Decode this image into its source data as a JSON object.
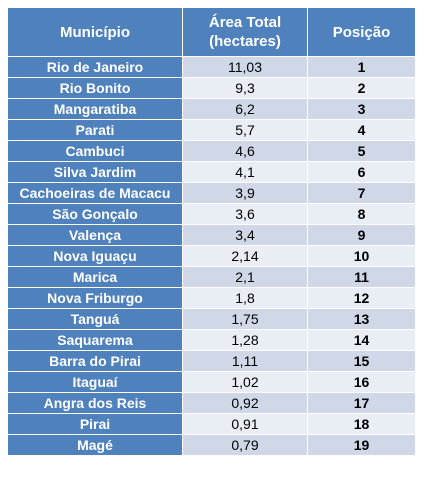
{
  "table": {
    "headers": [
      "Município",
      "Área Total\n(hectares)",
      "Posição"
    ],
    "rows": [
      {
        "municipio": "Rio de Janeiro",
        "area": "11,03",
        "posicao": "1"
      },
      {
        "municipio": "Rio Bonito",
        "area": "9,3",
        "posicao": "2"
      },
      {
        "municipio": "Mangaratiba",
        "area": "6,2",
        "posicao": "3"
      },
      {
        "municipio": "Parati",
        "area": "5,7",
        "posicao": "4"
      },
      {
        "municipio": "Cambuci",
        "area": "4,6",
        "posicao": "5"
      },
      {
        "municipio": "Silva Jardim",
        "area": "4,1",
        "posicao": "6"
      },
      {
        "municipio": "Cachoeiras de Macacu",
        "area": "3,9",
        "posicao": "7"
      },
      {
        "municipio": "São Gonçalo",
        "area": "3,6",
        "posicao": "8"
      },
      {
        "municipio": "Valença",
        "area": "3,4",
        "posicao": "9"
      },
      {
        "municipio": "Nova Iguaçu",
        "area": "2,14",
        "posicao": "10"
      },
      {
        "municipio": "Marica",
        "area": "2,1",
        "posicao": "11"
      },
      {
        "municipio": "Nova Friburgo",
        "area": "1,8",
        "posicao": "12"
      },
      {
        "municipio": "Tanguá",
        "area": "1,75",
        "posicao": "13"
      },
      {
        "municipio": "Saquarema",
        "area": "1,28",
        "posicao": "14"
      },
      {
        "municipio": "Barra do Pirai",
        "area": "1,11",
        "posicao": "15"
      },
      {
        "municipio": "Itaguaí",
        "area": "1,02",
        "posicao": "16"
      },
      {
        "municipio": "Angra dos Reis",
        "area": "0,92",
        "posicao": "17"
      },
      {
        "municipio": "Pirai",
        "area": "0,91",
        "posicao": "18"
      },
      {
        "municipio": "Magé",
        "area": "0,79",
        "posicao": "19"
      }
    ]
  },
  "colors": {
    "header_bg": "#4f81bd",
    "row_odd_bg": "#d0d8e8",
    "row_even_bg": "#e9edf4",
    "header_text": "#ffffff"
  }
}
